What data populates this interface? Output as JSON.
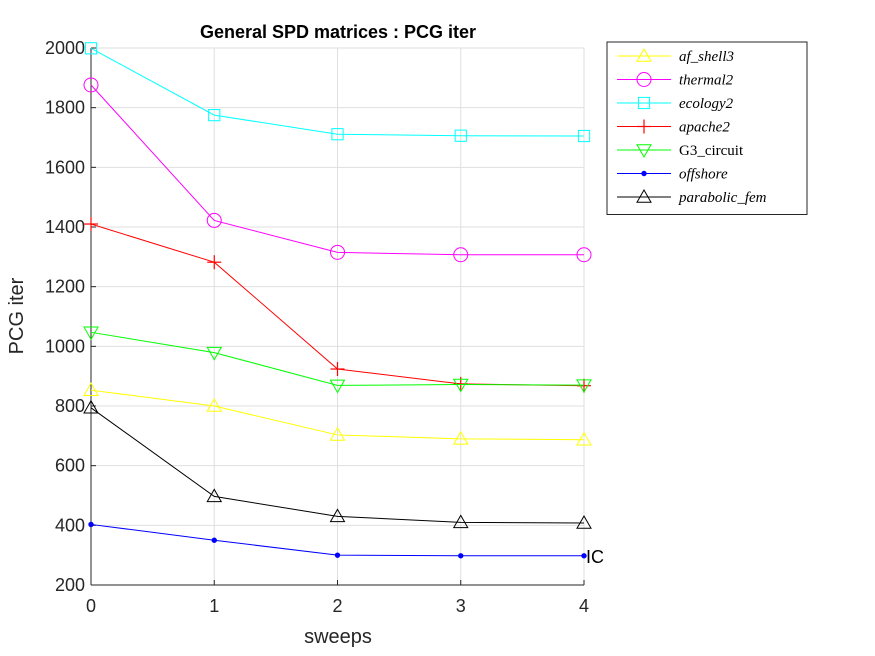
{
  "chart_data": {
    "type": "line",
    "title": "General SPD matrices : PCG iter",
    "xlabel": "sweeps",
    "ylabel": "PCG iter",
    "x": [
      0,
      1,
      2,
      3,
      4
    ],
    "xlim": [
      0,
      4
    ],
    "ylim": [
      200,
      2000
    ],
    "xticks": [
      "0",
      "1",
      "2",
      "3",
      "4"
    ],
    "yticks": [
      "200",
      "400",
      "600",
      "800",
      "1000",
      "1200",
      "1400",
      "1600",
      "1800",
      "2000"
    ],
    "grid": true,
    "legend_position": "outside-top-right",
    "series": [
      {
        "name": "af_shell3",
        "color": "#ffff00",
        "marker": "triangle-up",
        "values": [
          853,
          800,
          703,
          690,
          687
        ]
      },
      {
        "name": "thermal2",
        "color": "#ff00ff",
        "marker": "circle",
        "values": [
          1876,
          1422,
          1315,
          1307,
          1307
        ]
      },
      {
        "name": "ecology2",
        "color": "#00ffff",
        "marker": "square",
        "values": [
          1999,
          1775,
          1711,
          1706,
          1705
        ]
      },
      {
        "name": "apache2",
        "color": "#ff0000",
        "marker": "plus",
        "values": [
          1410,
          1282,
          924,
          874,
          868
        ]
      },
      {
        "name": "G3_circuit",
        "color": "#00ff00",
        "marker": "triangle-down",
        "values": [
          1047,
          979,
          869,
          872,
          870
        ]
      },
      {
        "name": "offshore",
        "color": "#0000ff",
        "marker": "dot",
        "values": [
          403,
          350,
          300,
          298,
          298
        ]
      },
      {
        "name": "parabolic_fem",
        "color": "#000000",
        "marker": "triangle-up",
        "values": [
          794,
          497,
          430,
          410,
          408
        ]
      }
    ],
    "annotations": [
      {
        "text": "IC",
        "x": 4,
        "y": 298
      }
    ]
  }
}
